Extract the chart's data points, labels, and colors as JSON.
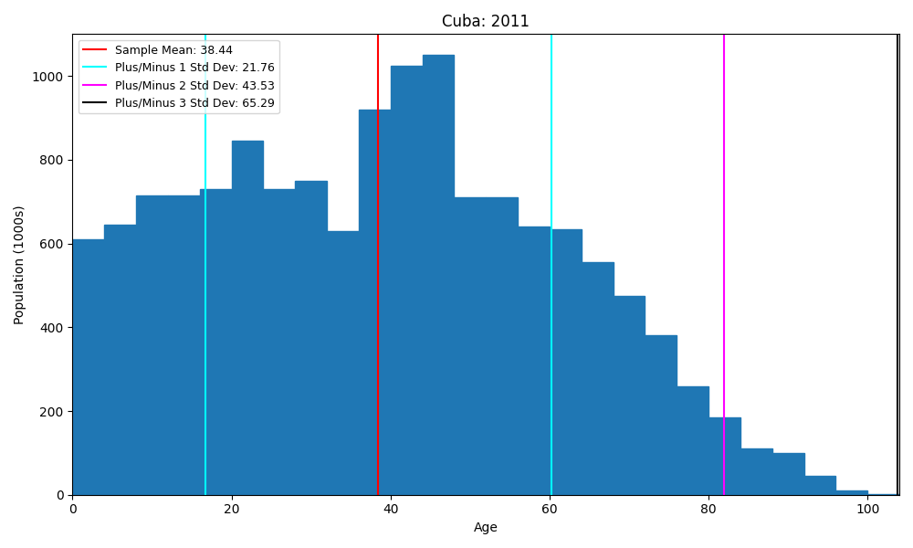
{
  "title": "Cuba: 2011",
  "xlabel": "Age",
  "ylabel": "Population (1000s)",
  "bar_color": "#1f77b4",
  "bar_heights": [
    610,
    645,
    715,
    715,
    730,
    845,
    730,
    750,
    630,
    920,
    1025,
    1050,
    710,
    710,
    640,
    635,
    555,
    475,
    380,
    260,
    185,
    110,
    100,
    45,
    10,
    2
  ],
  "mean": 38.44,
  "std1": 21.76,
  "std2": 43.53,
  "std3": 65.29,
  "mean_color": "red",
  "std1_color": "cyan",
  "std2_color": "magenta",
  "std3_color": "black",
  "legend_labels": [
    "Sample Mean: 38.44",
    "Plus/Minus 1 Std Dev: 21.76",
    "Plus/Minus 2 Std Dev: 43.53",
    "Plus/Minus 3 Std Dev: 65.29"
  ],
  "figsize": [
    10,
    6
  ],
  "dpi": 100
}
